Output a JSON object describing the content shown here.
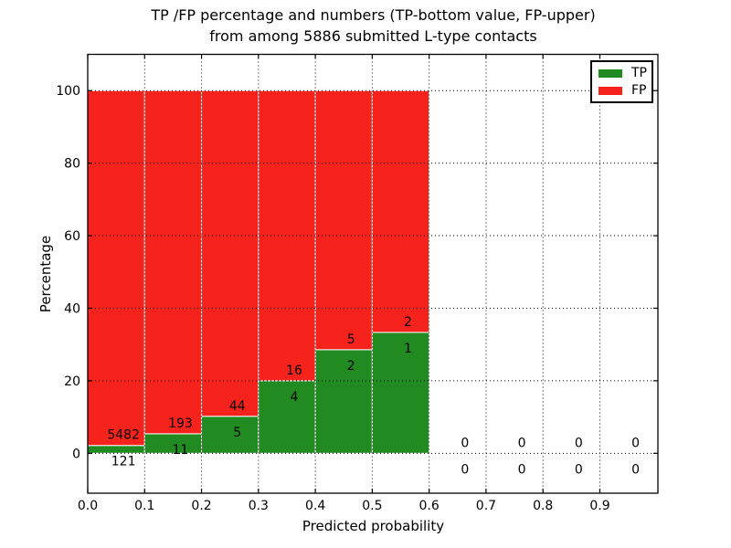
{
  "chart_data": {
    "type": "bar",
    "stacked": true,
    "title_line1": "TP /FP percentage and numbers (TP-bottom value, FP-upper)",
    "title_line2": "from among 5886 submitted L-type contacts",
    "xlabel": "Predicted probability",
    "ylabel": "Percentage",
    "total_contacts": 5886,
    "bin_edges": [
      0.0,
      0.1,
      0.2,
      0.3,
      0.4,
      0.5,
      0.6,
      0.7,
      0.8,
      0.9,
      1.0
    ],
    "series": [
      {
        "name": "TP",
        "color": "#218a21",
        "counts": [
          121,
          11,
          5,
          4,
          2,
          1,
          0,
          0,
          0,
          0
        ]
      },
      {
        "name": "FP",
        "color": "#f5231c",
        "counts": [
          5482,
          193,
          44,
          16,
          5,
          2,
          0,
          0,
          0,
          0
        ]
      }
    ],
    "tp_percent_by_bin": [
      2.16,
      5.39,
      10.2,
      20.0,
      28.57,
      33.33,
      0,
      0,
      0,
      0
    ],
    "bar_total_percent": 100,
    "x_ticks": [
      0.0,
      0.1,
      0.2,
      0.3,
      0.4,
      0.5,
      0.6,
      0.7,
      0.8,
      0.9
    ],
    "x_tick_labels": [
      "0.0",
      "0.1",
      "0.2",
      "0.3",
      "0.4",
      "0.5",
      "0.6",
      "0.7",
      "0.8",
      "0.9"
    ],
    "y_ticks": [
      0,
      20,
      40,
      60,
      80,
      100
    ],
    "y_tick_labels": [
      "0",
      "20",
      "40",
      "60",
      "80",
      "100"
    ],
    "xlim": [
      0,
      1.002
    ],
    "ylim": [
      -11,
      110
    ],
    "grid": "dotted",
    "legend_position": "upper right",
    "background_color": "#ffffff",
    "text_color": "#000000",
    "bar_edge_color": "#ffffff"
  }
}
